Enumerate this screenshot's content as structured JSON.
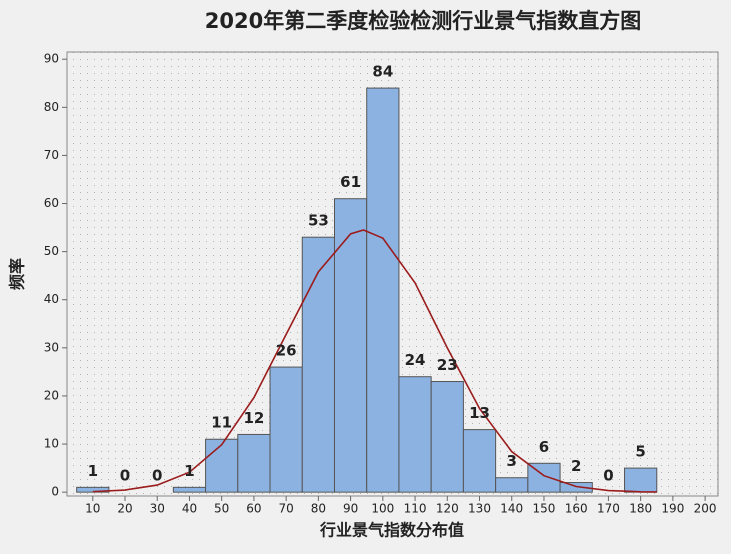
{
  "chart_data": {
    "type": "histogram",
    "title": "2020年第二季度检验检测行业景气指数直方图",
    "x_label": "行业景气指数分布值",
    "y_label": "频率",
    "bins": [
      5,
      15,
      25,
      35,
      45,
      55,
      65,
      75,
      85,
      95,
      105,
      115,
      125,
      135,
      145,
      155,
      165,
      175,
      185
    ],
    "counts": [
      1,
      0,
      0,
      1,
      11,
      12,
      26,
      53,
      61,
      84,
      24,
      23,
      13,
      3,
      6,
      2,
      0,
      5
    ],
    "color": "#8cb2e2",
    "fit_curve": {
      "color": "#9b1c1c",
      "x": [
        10,
        20,
        30,
        40,
        50,
        60,
        70,
        80,
        90,
        94,
        100,
        110,
        120,
        130,
        140,
        150,
        160,
        170,
        180,
        185
      ],
      "y": [
        0.11,
        0.44,
        1.47,
        4.15,
        9.87,
        19.65,
        32.8,
        45.8,
        53.7,
        54.5,
        52.8,
        43.5,
        30.0,
        17.4,
        8.42,
        3.42,
        1.17,
        0.33,
        0.08,
        0.04
      ]
    },
    "xlim": [
      2,
      204
    ],
    "ylim": [
      -0.8,
      91.5
    ],
    "xticks": [
      10,
      20,
      30,
      40,
      50,
      60,
      70,
      80,
      90,
      100,
      110,
      120,
      130,
      140,
      150,
      160,
      170,
      180,
      190,
      200
    ],
    "yticks": [
      0,
      10,
      20,
      30,
      40,
      50,
      60,
      70,
      80,
      90
    ],
    "grid": true
  }
}
